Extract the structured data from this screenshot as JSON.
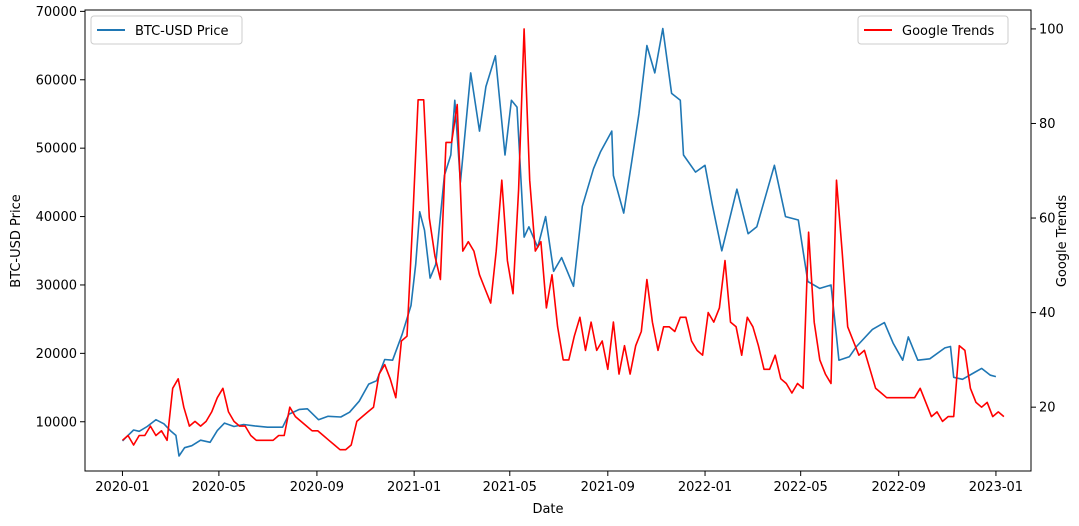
{
  "chart_data": {
    "type": "line",
    "xlabel": "Date",
    "ylabel_left": "BTC-USD Price",
    "ylabel_right": "Google Trends",
    "x_ticks": [
      "2020-01",
      "2020-05",
      "2020-09",
      "2021-01",
      "2021-05",
      "2021-09",
      "2022-01",
      "2022-05",
      "2022-09",
      "2023-01"
    ],
    "y_left_ticks": [
      10000,
      20000,
      30000,
      40000,
      50000,
      60000,
      70000
    ],
    "y_right_ticks": [
      20,
      40,
      60,
      80,
      100
    ],
    "x_range": [
      "2019-11-15",
      "2023-02-14"
    ],
    "y_left_range": [
      2800,
      70200
    ],
    "y_right_range": [
      6.5,
      104
    ],
    "grid": false,
    "legend_left": "top-left",
    "legend_right": "top-right",
    "colors": {
      "btc": "#1f77b4",
      "trends": "#ff0000"
    },
    "series": [
      {
        "name": "BTC-USD Price",
        "axis": "left",
        "points": [
          [
            "2020-01-01",
            7200
          ],
          [
            "2020-01-08",
            8000
          ],
          [
            "2020-01-15",
            8800
          ],
          [
            "2020-01-22",
            8600
          ],
          [
            "2020-02-01",
            9300
          ],
          [
            "2020-02-12",
            10300
          ],
          [
            "2020-02-22",
            9700
          ],
          [
            "2020-03-01",
            8700
          ],
          [
            "2020-03-08",
            8000
          ],
          [
            "2020-03-12",
            5000
          ],
          [
            "2020-03-19",
            6200
          ],
          [
            "2020-03-28",
            6500
          ],
          [
            "2020-04-08",
            7300
          ],
          [
            "2020-04-20",
            7000
          ],
          [
            "2020-04-29",
            8700
          ],
          [
            "2020-05-08",
            9800
          ],
          [
            "2020-05-20",
            9300
          ],
          [
            "2020-06-01",
            9600
          ],
          [
            "2020-06-15",
            9400
          ],
          [
            "2020-07-01",
            9200
          ],
          [
            "2020-07-20",
            9200
          ],
          [
            "2020-07-28",
            11100
          ],
          [
            "2020-08-10",
            11800
          ],
          [
            "2020-08-20",
            11900
          ],
          [
            "2020-09-03",
            10300
          ],
          [
            "2020-09-15",
            10800
          ],
          [
            "2020-10-01",
            10700
          ],
          [
            "2020-10-12",
            11400
          ],
          [
            "2020-10-24",
            13000
          ],
          [
            "2020-11-05",
            15500
          ],
          [
            "2020-11-15",
            16000
          ],
          [
            "2020-11-25",
            19100
          ],
          [
            "2020-12-05",
            19000
          ],
          [
            "2020-12-17",
            22800
          ],
          [
            "2020-12-28",
            27000
          ],
          [
            "2021-01-03",
            33000
          ],
          [
            "2021-01-08",
            40700
          ],
          [
            "2021-01-14",
            38000
          ],
          [
            "2021-01-21",
            31000
          ],
          [
            "2021-01-28",
            33000
          ],
          [
            "2021-02-08",
            46000
          ],
          [
            "2021-02-16",
            49000
          ],
          [
            "2021-02-21",
            57000
          ],
          [
            "2021-02-28",
            45000
          ],
          [
            "2021-03-13",
            61000
          ],
          [
            "2021-03-24",
            52500
          ],
          [
            "2021-04-01",
            59000
          ],
          [
            "2021-04-13",
            63500
          ],
          [
            "2021-04-25",
            49000
          ],
          [
            "2021-05-03",
            57000
          ],
          [
            "2021-05-10",
            56000
          ],
          [
            "2021-05-19",
            37000
          ],
          [
            "2021-05-25",
            38500
          ],
          [
            "2021-06-05",
            35500
          ],
          [
            "2021-06-15",
            40000
          ],
          [
            "2021-06-25",
            32000
          ],
          [
            "2021-07-05",
            34000
          ],
          [
            "2021-07-20",
            29800
          ],
          [
            "2021-07-31",
            41500
          ],
          [
            "2021-08-14",
            47000
          ],
          [
            "2021-08-23",
            49500
          ],
          [
            "2021-09-06",
            52500
          ],
          [
            "2021-09-08",
            46000
          ],
          [
            "2021-09-21",
            40500
          ],
          [
            "2021-10-01",
            48000
          ],
          [
            "2021-10-10",
            55000
          ],
          [
            "2021-10-20",
            65000
          ],
          [
            "2021-10-30",
            61000
          ],
          [
            "2021-11-09",
            67500
          ],
          [
            "2021-11-20",
            58000
          ],
          [
            "2021-12-01",
            57000
          ],
          [
            "2021-12-05",
            49000
          ],
          [
            "2021-12-20",
            46500
          ],
          [
            "2022-01-01",
            47500
          ],
          [
            "2022-01-10",
            41800
          ],
          [
            "2022-01-22",
            35000
          ],
          [
            "2022-02-10",
            44000
          ],
          [
            "2022-02-24",
            37500
          ],
          [
            "2022-03-07",
            38500
          ],
          [
            "2022-03-29",
            47500
          ],
          [
            "2022-04-12",
            40000
          ],
          [
            "2022-04-28",
            39500
          ],
          [
            "2022-05-10",
            30500
          ],
          [
            "2022-05-25",
            29500
          ],
          [
            "2022-06-08",
            30000
          ],
          [
            "2022-06-15",
            22500
          ],
          [
            "2022-06-18",
            19000
          ],
          [
            "2022-07-01",
            19500
          ],
          [
            "2022-07-10",
            21000
          ],
          [
            "2022-07-30",
            23500
          ],
          [
            "2022-08-14",
            24500
          ],
          [
            "2022-08-25",
            21500
          ],
          [
            "2022-09-06",
            19000
          ],
          [
            "2022-09-13",
            22400
          ],
          [
            "2022-09-25",
            19000
          ],
          [
            "2022-10-10",
            19200
          ],
          [
            "2022-10-29",
            20800
          ],
          [
            "2022-11-05",
            21000
          ],
          [
            "2022-11-09",
            16500
          ],
          [
            "2022-11-20",
            16200
          ],
          [
            "2022-12-05",
            17200
          ],
          [
            "2022-12-14",
            17800
          ],
          [
            "2022-12-25",
            16800
          ],
          [
            "2023-01-01",
            16600
          ]
        ]
      },
      {
        "name": "Google Trends",
        "axis": "right",
        "points": [
          [
            "2020-01-01",
            13
          ],
          [
            "2020-01-08",
            14
          ],
          [
            "2020-01-15",
            12
          ],
          [
            "2020-01-22",
            14
          ],
          [
            "2020-01-29",
            14
          ],
          [
            "2020-02-05",
            16
          ],
          [
            "2020-02-12",
            14
          ],
          [
            "2020-02-19",
            15
          ],
          [
            "2020-02-26",
            13
          ],
          [
            "2020-03-04",
            24
          ],
          [
            "2020-03-11",
            26
          ],
          [
            "2020-03-18",
            20
          ],
          [
            "2020-03-25",
            16
          ],
          [
            "2020-04-01",
            17
          ],
          [
            "2020-04-08",
            16
          ],
          [
            "2020-04-15",
            17
          ],
          [
            "2020-04-22",
            19
          ],
          [
            "2020-04-29",
            22
          ],
          [
            "2020-05-06",
            24
          ],
          [
            "2020-05-13",
            19
          ],
          [
            "2020-05-20",
            17
          ],
          [
            "2020-05-27",
            16
          ],
          [
            "2020-06-03",
            16
          ],
          [
            "2020-06-10",
            14
          ],
          [
            "2020-06-17",
            13
          ],
          [
            "2020-06-24",
            13
          ],
          [
            "2020-07-01",
            13
          ],
          [
            "2020-07-08",
            13
          ],
          [
            "2020-07-15",
            14
          ],
          [
            "2020-07-22",
            14
          ],
          [
            "2020-07-29",
            20
          ],
          [
            "2020-08-05",
            18
          ],
          [
            "2020-08-12",
            17
          ],
          [
            "2020-08-19",
            16
          ],
          [
            "2020-08-26",
            15
          ],
          [
            "2020-09-02",
            15
          ],
          [
            "2020-09-09",
            14
          ],
          [
            "2020-09-16",
            13
          ],
          [
            "2020-09-23",
            12
          ],
          [
            "2020-09-30",
            11
          ],
          [
            "2020-10-07",
            11
          ],
          [
            "2020-10-14",
            12
          ],
          [
            "2020-10-21",
            17
          ],
          [
            "2020-10-28",
            18
          ],
          [
            "2020-11-04",
            19
          ],
          [
            "2020-11-11",
            20
          ],
          [
            "2020-11-18",
            27
          ],
          [
            "2020-11-25",
            29
          ],
          [
            "2020-12-02",
            26
          ],
          [
            "2020-12-09",
            22
          ],
          [
            "2020-12-16",
            34
          ],
          [
            "2020-12-23",
            35
          ],
          [
            "2020-12-30",
            59
          ],
          [
            "2021-01-06",
            85
          ],
          [
            "2021-01-13",
            85
          ],
          [
            "2021-01-20",
            60
          ],
          [
            "2021-01-27",
            52
          ],
          [
            "2021-02-03",
            47
          ],
          [
            "2021-02-10",
            76
          ],
          [
            "2021-02-17",
            76
          ],
          [
            "2021-02-24",
            84
          ],
          [
            "2021-03-03",
            53
          ],
          [
            "2021-03-10",
            55
          ],
          [
            "2021-03-17",
            53
          ],
          [
            "2021-03-24",
            48
          ],
          [
            "2021-03-31",
            45
          ],
          [
            "2021-04-07",
            42
          ],
          [
            "2021-04-14",
            53
          ],
          [
            "2021-04-21",
            68
          ],
          [
            "2021-04-28",
            51
          ],
          [
            "2021-05-05",
            44
          ],
          [
            "2021-05-12",
            66
          ],
          [
            "2021-05-19",
            100
          ],
          [
            "2021-05-26",
            68
          ],
          [
            "2021-06-02",
            53
          ],
          [
            "2021-06-09",
            55
          ],
          [
            "2021-06-16",
            41
          ],
          [
            "2021-06-23",
            48
          ],
          [
            "2021-06-30",
            37
          ],
          [
            "2021-07-07",
            30
          ],
          [
            "2021-07-14",
            30
          ],
          [
            "2021-07-21",
            35
          ],
          [
            "2021-07-28",
            39
          ],
          [
            "2021-08-04",
            32
          ],
          [
            "2021-08-11",
            38
          ],
          [
            "2021-08-18",
            32
          ],
          [
            "2021-08-25",
            34
          ],
          [
            "2021-09-01",
            28
          ],
          [
            "2021-09-08",
            38
          ],
          [
            "2021-09-15",
            27
          ],
          [
            "2021-09-22",
            33
          ],
          [
            "2021-09-29",
            27
          ],
          [
            "2021-10-06",
            33
          ],
          [
            "2021-10-13",
            36
          ],
          [
            "2021-10-20",
            47
          ],
          [
            "2021-10-27",
            38
          ],
          [
            "2021-11-03",
            32
          ],
          [
            "2021-11-10",
            37
          ],
          [
            "2021-11-17",
            37
          ],
          [
            "2021-11-24",
            36
          ],
          [
            "2021-12-01",
            39
          ],
          [
            "2021-12-08",
            39
          ],
          [
            "2021-12-15",
            34
          ],
          [
            "2021-12-22",
            32
          ],
          [
            "2021-12-29",
            31
          ],
          [
            "2022-01-05",
            40
          ],
          [
            "2022-01-12",
            38
          ],
          [
            "2022-01-19",
            41
          ],
          [
            "2022-01-26",
            51
          ],
          [
            "2022-02-02",
            38
          ],
          [
            "2022-02-09",
            37
          ],
          [
            "2022-02-16",
            31
          ],
          [
            "2022-02-23",
            39
          ],
          [
            "2022-03-02",
            37
          ],
          [
            "2022-03-09",
            33
          ],
          [
            "2022-03-16",
            28
          ],
          [
            "2022-03-23",
            28
          ],
          [
            "2022-03-30",
            31
          ],
          [
            "2022-04-06",
            26
          ],
          [
            "2022-04-13",
            25
          ],
          [
            "2022-04-20",
            23
          ],
          [
            "2022-04-27",
            25
          ],
          [
            "2022-05-04",
            24
          ],
          [
            "2022-05-11",
            57
          ],
          [
            "2022-05-18",
            38
          ],
          [
            "2022-05-25",
            30
          ],
          [
            "2022-06-01",
            27
          ],
          [
            "2022-06-08",
            25
          ],
          [
            "2022-06-15",
            68
          ],
          [
            "2022-06-22",
            53
          ],
          [
            "2022-06-29",
            37
          ],
          [
            "2022-07-06",
            34
          ],
          [
            "2022-07-13",
            31
          ],
          [
            "2022-07-20",
            32
          ],
          [
            "2022-07-27",
            28
          ],
          [
            "2022-08-03",
            24
          ],
          [
            "2022-08-10",
            23
          ],
          [
            "2022-08-17",
            22
          ],
          [
            "2022-08-24",
            22
          ],
          [
            "2022-08-31",
            22
          ],
          [
            "2022-09-07",
            22
          ],
          [
            "2022-09-14",
            22
          ],
          [
            "2022-09-21",
            22
          ],
          [
            "2022-09-28",
            24
          ],
          [
            "2022-10-05",
            21
          ],
          [
            "2022-10-12",
            18
          ],
          [
            "2022-10-19",
            19
          ],
          [
            "2022-10-26",
            17
          ],
          [
            "2022-11-02",
            18
          ],
          [
            "2022-11-09",
            18
          ],
          [
            "2022-11-16",
            33
          ],
          [
            "2022-11-23",
            32
          ],
          [
            "2022-11-30",
            24
          ],
          [
            "2022-12-07",
            21
          ],
          [
            "2022-12-14",
            20
          ],
          [
            "2022-12-21",
            21
          ],
          [
            "2022-12-28",
            18
          ],
          [
            "2023-01-04",
            19
          ],
          [
            "2023-01-11",
            18
          ]
        ]
      }
    ]
  }
}
